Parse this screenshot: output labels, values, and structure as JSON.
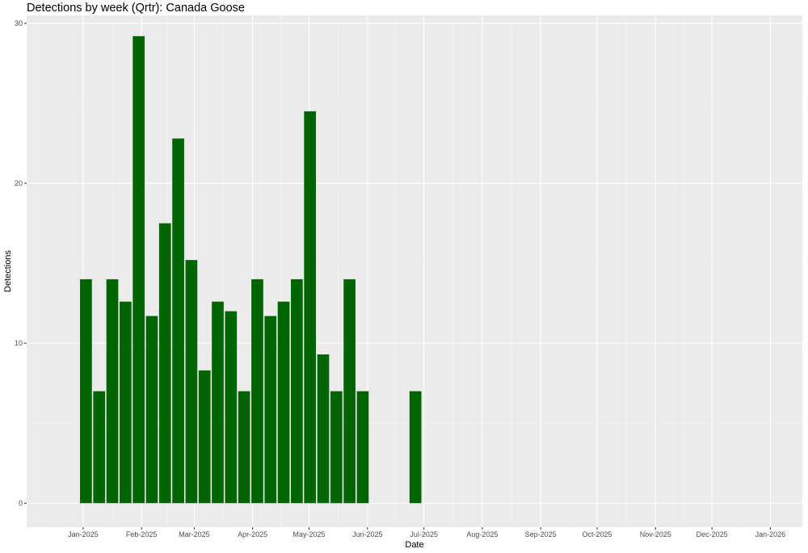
{
  "chart_data": {
    "type": "bar",
    "title": "Detections by week (Qrtr): Canada Goose",
    "xlabel": "Date",
    "ylabel": "Detections",
    "x_ticks": [
      "Jan-2025",
      "Feb-2025",
      "Mar-2025",
      "Apr-2025",
      "May-2025",
      "Jun-2025",
      "Jul-2025",
      "Aug-2025",
      "Sep-2025",
      "Oct-2025",
      "Nov-2025",
      "Dec-2025",
      "Jan-2026"
    ],
    "y_ticks": [
      "0",
      "10",
      "20",
      "30"
    ],
    "ylim": [
      -1.5,
      30.5
    ],
    "xlim": [
      "2024-12-02",
      "2026-01-18"
    ],
    "grid": true,
    "bar_color": "#006400",
    "panel_color": "#EBEBEB",
    "x": [
      "2024-12-30",
      "2025-01-06",
      "2025-01-13",
      "2025-01-20",
      "2025-01-27",
      "2025-02-03",
      "2025-02-10",
      "2025-02-17",
      "2025-02-24",
      "2025-03-03",
      "2025-03-10",
      "2025-03-17",
      "2025-03-24",
      "2025-03-31",
      "2025-04-07",
      "2025-04-14",
      "2025-04-21",
      "2025-04-28",
      "2025-05-05",
      "2025-05-12",
      "2025-05-19",
      "2025-05-26",
      "2025-06-23"
    ],
    "values": [
      14.0,
      7.0,
      14.0,
      12.6,
      29.2,
      11.7,
      17.5,
      22.8,
      15.2,
      8.3,
      12.6,
      12.0,
      7.0,
      14.0,
      11.7,
      12.6,
      14.0,
      24.5,
      9.3,
      7.0,
      14.0,
      7.0,
      7.0
    ]
  }
}
